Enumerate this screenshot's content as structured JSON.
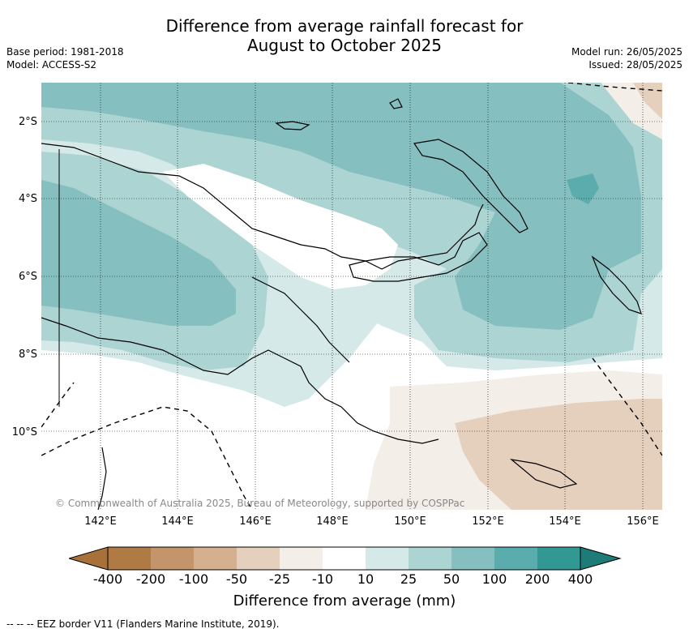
{
  "header": {
    "title_line1": "Difference from average rainfall forecast for",
    "title_line2": "August to October 2025",
    "base_period": "Base period: 1981-2018",
    "model": "Model: ACCESS-S2",
    "model_run": "Model run: 26/05/2025",
    "issued": "Issued: 28/05/2025"
  },
  "map": {
    "lat_labels": [
      "2°S",
      "4°S",
      "6°S",
      "8°S",
      "10°S"
    ],
    "lon_labels": [
      "142°E",
      "144°E",
      "146°E",
      "148°E",
      "150°E",
      "152°E",
      "154°E",
      "156°E"
    ],
    "copyright": "© Commonwealth of Australia 2025, Bureau of Meteorology, supported by COSPPac"
  },
  "legend": {
    "title": "Difference from average (mm)",
    "ticks": [
      "-400",
      "-200",
      "-100",
      "-50",
      "-25",
      "-10",
      "10",
      "25",
      "50",
      "100",
      "200",
      "400"
    ],
    "colors": [
      "#a9713a",
      "#b07a45",
      "#c4956a",
      "#d4b08f",
      "#e5d0be",
      "#f3eee7",
      "#ffffff",
      "#d5e9e8",
      "#acd4d3",
      "#86bfbf",
      "#5aadac",
      "#329894",
      "#1e7c78"
    ]
  },
  "footnote": "--  --  -- EEZ border V11 (Flanders Marine Institute, 2019)."
}
